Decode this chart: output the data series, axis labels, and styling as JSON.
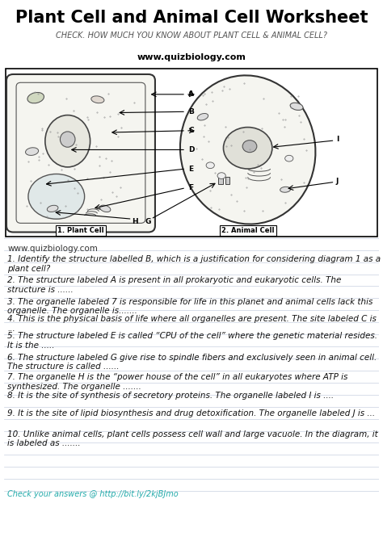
{
  "title": "Plant Cell and Animal Cell Worksheet",
  "subtitle": "CHECK. HOW MUCH YOU KNOW ABOUT PLANT CELL & ANIMAL CELL?",
  "website": "www.quizbiology.com",
  "bg_color": "#ffffff",
  "line_color": "#c8d0e0",
  "questions": [
    "1. Identify the structure labelled B, which is a justification for considering diagram 1 as a plant cell?",
    "2. The structure labeled A is present in all prokaryotic and eukaryotic cells. The structure is ......",
    "3. The organelle labeled 7 is responsible for life in this planet and animal cells lack this organelle. The organelle is.......",
    "4. This is the physical basis of life where all organelles are present. The site labeled C is ...",
    "5. The structure labeled E is called “CPU of the cell” where the genetic material resides. It is the .....",
    "6. The structure labeled G give rise to spindle fibers and exclusively seen in animal cell. The structure is called ......",
    "7. The organelle H is the “power house of the cell” in all eukaryotes where ATP is synthesized. The organelle .......",
    "8. It is the site of synthesis of secretory proteins. The organelle labeled I is ....",
    "9. It is the site of lipid biosynthesis and drug detoxification. The organelle labeled J is ...",
    "10. Unlike animal cells, plant cells possess cell wall and large vacuole. In the diagram, it is labeled as ......."
  ],
  "footer": "Check your answers @ http://bit.ly/2kjBJmo",
  "title_fontsize": 15,
  "subtitle_fontsize": 7,
  "website_fontsize": 8,
  "question_fontsize": 7.5,
  "footer_fontsize": 7
}
